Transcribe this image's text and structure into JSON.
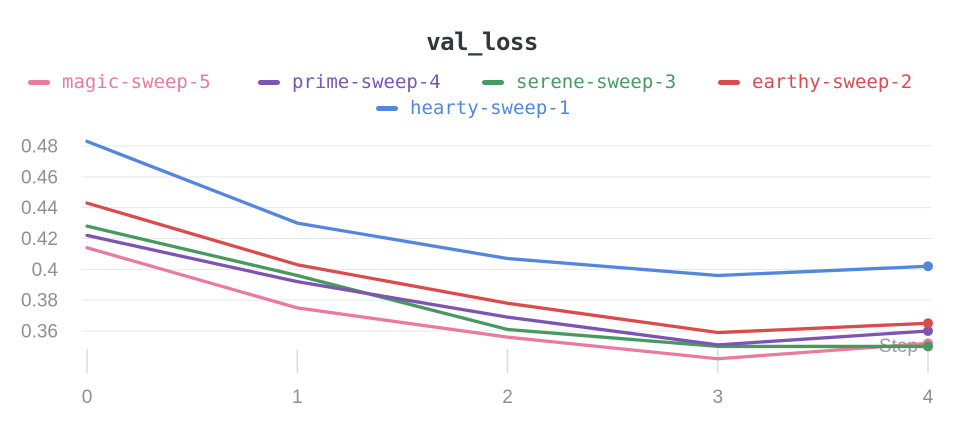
{
  "chart_data": {
    "type": "line",
    "title": "val_loss",
    "xlabel": "Step",
    "x": [
      0,
      1,
      2,
      3,
      4
    ],
    "series": [
      {
        "name": "magic-sweep-5",
        "color": "#E87B9F",
        "z": 0,
        "values": [
          0.414,
          0.375,
          0.356,
          0.342,
          0.352
        ]
      },
      {
        "name": "prime-sweep-4",
        "color": "#7D54B2",
        "z": 2,
        "values": [
          0.422,
          0.392,
          0.369,
          0.351,
          0.36
        ]
      },
      {
        "name": "serene-sweep-3",
        "color": "#479A5F",
        "z": 1,
        "values": [
          0.428,
          0.396,
          0.361,
          0.35,
          0.35
        ]
      },
      {
        "name": "earthy-sweep-2",
        "color": "#DA4C4C",
        "z": 3,
        "values": [
          0.443,
          0.403,
          0.378,
          0.359,
          0.365
        ]
      },
      {
        "name": "hearty-sweep-1",
        "color": "#5387DD",
        "z": 4,
        "values": [
          0.483,
          0.43,
          0.407,
          0.396,
          0.402
        ]
      }
    ],
    "yticks": [
      0.48,
      0.46,
      0.44,
      0.42,
      0.4,
      0.38,
      0.36
    ],
    "ytick_labels": [
      "0.48",
      "0.46",
      "0.44",
      "0.42",
      "0.4",
      "0.38",
      "0.36"
    ],
    "xtick_labels": [
      "0",
      "1",
      "2",
      "3",
      "4"
    ],
    "ylim": [
      0.36,
      0.48
    ],
    "grid": "horizontal",
    "legend_position": "top",
    "ui_colors": {
      "grid_line": "#e7e7ea",
      "tick_mark": "#dcdce0",
      "axis_text": "#8f8f97",
      "title_text": "#33373d",
      "step_label_text": "#9a9aa2",
      "background": "#ffffff"
    }
  }
}
